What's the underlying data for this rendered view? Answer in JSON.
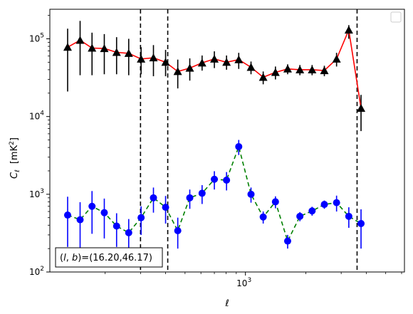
{
  "chart_data": {
    "type": "line",
    "xscale": "log",
    "yscale": "log",
    "xlim": [
      106,
      6200
    ],
    "ylim": [
      100,
      240000
    ],
    "xlabel": "ℓ",
    "ylabel": "C_ℓ [mK²]",
    "ylabel_main": "C",
    "ylabel_sub": "ℓ",
    "ylabel_unit": "[mK",
    "ylabel_unit_sup": "2",
    "ylabel_unit_end": "]",
    "xticks": [
      {
        "value": 1000,
        "base": "10",
        "exp": "3"
      }
    ],
    "yticks": [
      {
        "value": 100,
        "base": "10",
        "exp": "2"
      },
      {
        "value": 1000,
        "base": "10",
        "exp": "3"
      },
      {
        "value": 10000,
        "base": "10",
        "exp": "4"
      },
      {
        "value": 100000,
        "base": "10",
        "exp": "5"
      }
    ],
    "vlines": [
      300,
      410,
      3600
    ],
    "annotation": "(l, b)=(16.20,46.17)",
    "annotation_parts": {
      "paren_open": "(",
      "l": "l",
      "comma": ", ",
      "b": "b",
      "rest": ")=(16.20,46.17)"
    },
    "legend": "top-right, empty",
    "series": [
      {
        "color": "#ff0000",
        "marker_color": "#000000",
        "marker": "triangle",
        "linestyle": "solid",
        "x": [
          130,
          150,
          172,
          198,
          228,
          262,
          302,
          348,
          400,
          460,
          528,
          608,
          700,
          805,
          926,
          1066,
          1226,
          1411,
          1623,
          1868,
          2149,
          2473,
          2845,
          3274,
          3767,
          4335,
          4988,
          5740
        ],
        "y": [
          78000,
          96000,
          76000,
          75000,
          67000,
          65000,
          55000,
          57000,
          50000,
          38000,
          42000,
          49000,
          55000,
          50000,
          54000,
          43000,
          32000,
          37000,
          41000,
          40000,
          40000,
          39000,
          55000,
          130000,
          12800,
          null,
          null,
          null
        ],
        "y_lo": [
          21000,
          34000,
          34000,
          35000,
          35000,
          34000,
          35000,
          33000,
          33000,
          23000,
          29000,
          39000,
          42000,
          40000,
          41000,
          35000,
          26000,
          30000,
          35000,
          34000,
          34000,
          33000,
          44000,
          100000,
          6500,
          null,
          null,
          null
        ],
        "y_hi": [
          135000,
          170000,
          120000,
          115000,
          105000,
          100000,
          78000,
          83000,
          72000,
          54000,
          56000,
          61000,
          69000,
          61000,
          66000,
          51000,
          38000,
          44000,
          47000,
          46000,
          46000,
          45000,
          66000,
          150000,
          19000,
          null,
          null,
          null
        ]
      },
      {
        "color": "#008000",
        "marker_color": "#0000ff",
        "marker": "circle",
        "linestyle": "dashed",
        "x": [
          130,
          150,
          172,
          198,
          228,
          262,
          302,
          348,
          400,
          460,
          528,
          608,
          700,
          805,
          926,
          1066,
          1226,
          1411,
          1623,
          1868,
          2149,
          2473,
          2845,
          3274,
          3767,
          4335,
          4988,
          5740
        ],
        "y": [
          540,
          470,
          700,
          580,
          390,
          320,
          500,
          900,
          680,
          340,
          900,
          1030,
          1560,
          1520,
          4100,
          1000,
          510,
          800,
          250,
          520,
          610,
          740,
          780,
          520,
          420,
          null,
          null,
          null
        ],
        "y_lo": [
          210,
          200,
          310,
          270,
          210,
          180,
          300,
          580,
          420,
          200,
          650,
          750,
          1150,
          1120,
          3200,
          780,
          420,
          660,
          200,
          450,
          530,
          650,
          600,
          370,
          200,
          null,
          null,
          null
        ],
        "y_hi": [
          930,
          790,
          1100,
          880,
          570,
          480,
          700,
          1220,
          950,
          500,
          1150,
          1310,
          1980,
          1930,
          5000,
          1220,
          600,
          940,
          300,
          590,
          690,
          830,
          960,
          680,
          640,
          null,
          null,
          null
        ]
      }
    ]
  }
}
